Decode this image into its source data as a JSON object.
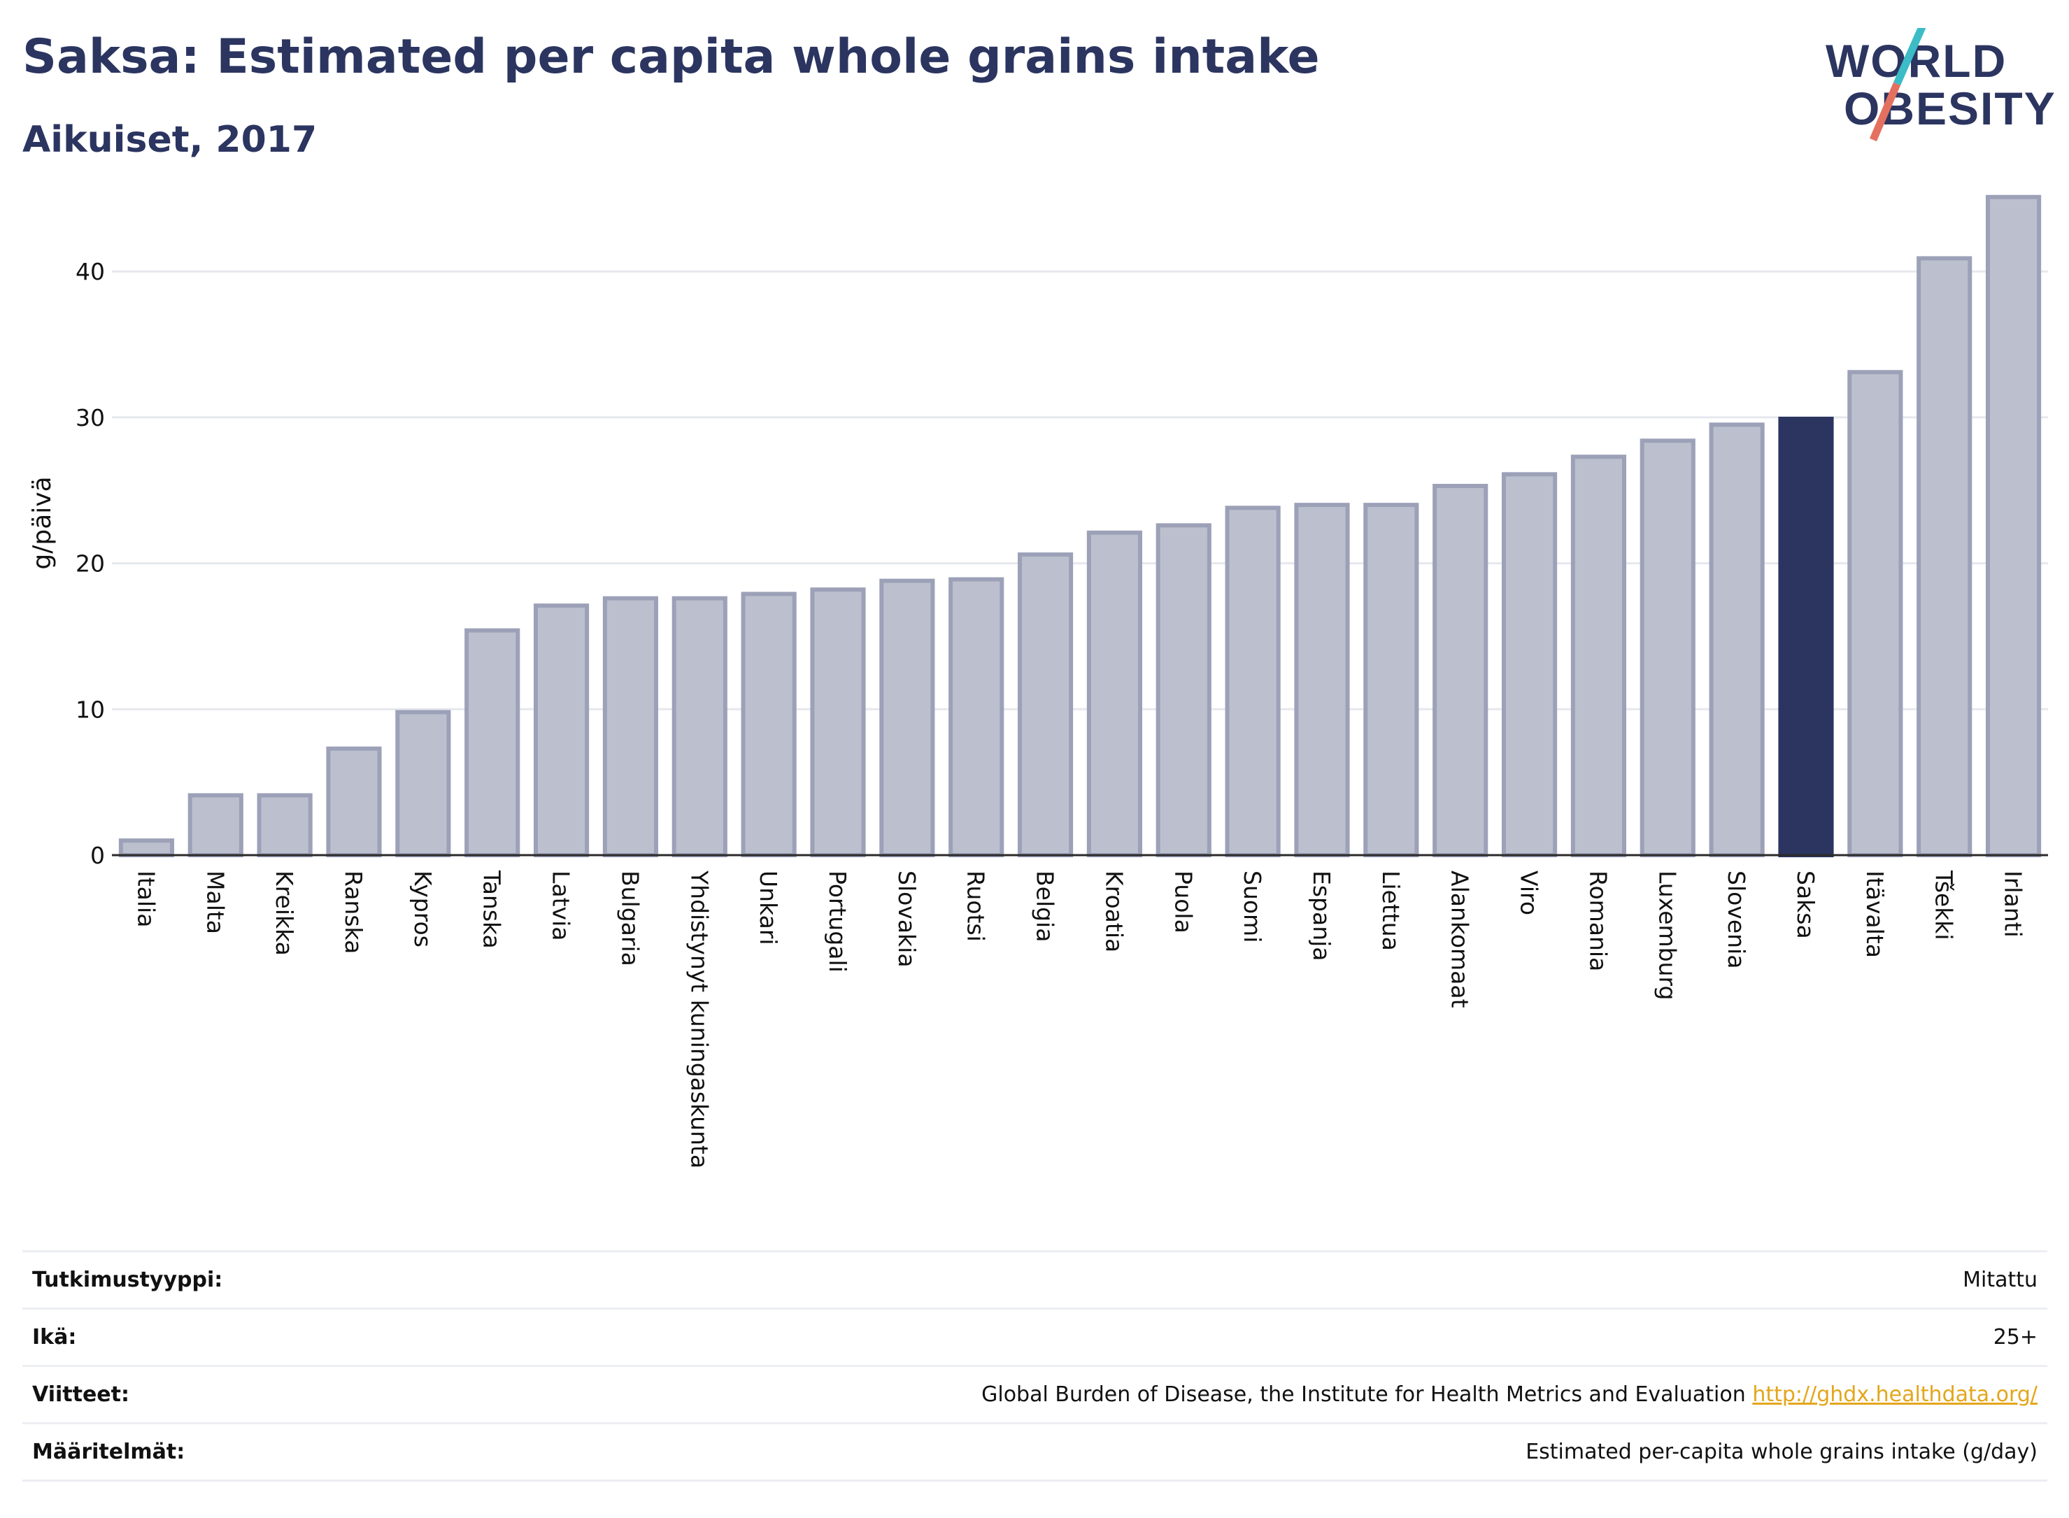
{
  "header": {
    "title": "Saksa: Estimated per capita whole grains intake",
    "subtitle": "Aikuiset, 2017"
  },
  "logo": {
    "line1": "WORLD",
    "line2": "OBESITY",
    "accent_teal": "#3bbcc6",
    "accent_coral": "#e4705f"
  },
  "chart_data": {
    "type": "bar",
    "ylabel": "g/päivä",
    "ylim": [
      0,
      46
    ],
    "yticks": [
      0,
      10,
      20,
      30,
      40
    ],
    "grid": true,
    "highlight": "Saksa",
    "colors": {
      "default_fill": "#bcc0ce",
      "default_stroke": "#9ca1b8",
      "highlight": "#2b3560"
    },
    "categories": [
      "Italia",
      "Malta",
      "Kreikka",
      "Ranska",
      "Kypros",
      "Tanska",
      "Latvia",
      "Bulgaria",
      "Yhdistynyt kuningaskunta",
      "Unkari",
      "Portugali",
      "Slovakia",
      "Ruotsi",
      "Belgia",
      "Kroatia",
      "Puola",
      "Suomi",
      "Espanja",
      "Liettua",
      "Alankomaat",
      "Viro",
      "Romania",
      "Luxemburg",
      "Slovenia",
      "Saksa",
      "Itävalta",
      "Tšekki",
      "Irlanti"
    ],
    "values": [
      1.0,
      4.1,
      4.1,
      7.3,
      9.8,
      15.4,
      17.1,
      17.6,
      17.6,
      17.9,
      18.2,
      18.8,
      18.9,
      20.6,
      22.1,
      22.6,
      23.8,
      24.0,
      24.0,
      25.3,
      26.1,
      27.3,
      28.4,
      29.5,
      29.9,
      33.1,
      40.9,
      45.1
    ]
  },
  "info": [
    {
      "label": "Tutkimustyyppi:",
      "value": "Mitattu"
    },
    {
      "label": "Ikä:",
      "value": "25+"
    },
    {
      "label": "Viitteet:",
      "value": "Global Burden of Disease, the Institute for Health Metrics and Evaluation",
      "link": "http://ghdx.healthdata.org/"
    },
    {
      "label": "Määritelmät:",
      "value": "Estimated per-capita whole grains intake (g/day)"
    }
  ]
}
